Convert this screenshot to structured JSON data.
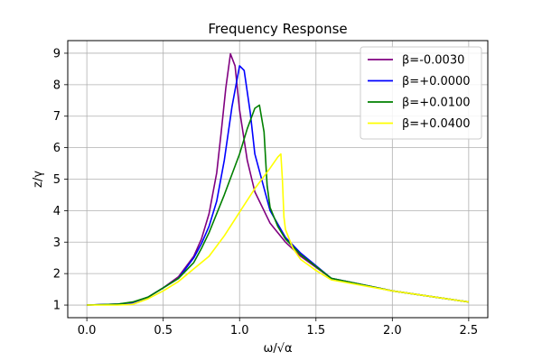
{
  "chart_data": {
    "type": "line",
    "title": "Frequency Response",
    "xlabel": "ω/√α",
    "ylabel": "z/γ",
    "xlim": [
      -0.125,
      2.625
    ],
    "ylim": [
      0.6,
      9.4
    ],
    "xticks": [
      0.0,
      0.5,
      1.0,
      1.5,
      2.0,
      2.5
    ],
    "xtick_labels": [
      "0.0",
      "0.5",
      "1.0",
      "1.5",
      "2.0",
      "2.5"
    ],
    "yticks": [
      1,
      2,
      3,
      4,
      5,
      6,
      7,
      8,
      9
    ],
    "ytick_labels": [
      "1",
      "2",
      "3",
      "4",
      "5",
      "6",
      "7",
      "8",
      "9"
    ],
    "grid": true,
    "legend_position": "top-right",
    "series": [
      {
        "name": "β=-0.0030",
        "color": "#800080",
        "x": [
          0.0,
          0.2,
          0.3,
          0.4,
          0.5,
          0.6,
          0.7,
          0.75,
          0.8,
          0.85,
          0.88,
          0.91,
          0.94,
          0.97,
          1.0,
          1.05,
          1.1,
          1.2,
          1.3,
          1.4,
          1.6,
          2.0,
          2.5
        ],
        "y": [
          1.0,
          1.03,
          1.08,
          1.25,
          1.55,
          1.9,
          2.55,
          3.1,
          3.9,
          5.2,
          6.5,
          7.9,
          8.98,
          8.6,
          7.2,
          5.6,
          4.6,
          3.6,
          3.0,
          2.55,
          1.85,
          1.45,
          1.1
        ]
      },
      {
        "name": "β=+0.0000",
        "color": "#0000ff",
        "x": [
          0.0,
          0.2,
          0.3,
          0.4,
          0.5,
          0.6,
          0.7,
          0.75,
          0.8,
          0.85,
          0.9,
          0.95,
          1.0,
          1.03,
          1.07,
          1.1,
          1.2,
          1.3,
          1.4,
          1.6,
          2.0,
          2.5
        ],
        "y": [
          1.0,
          1.03,
          1.08,
          1.25,
          1.55,
          1.85,
          2.5,
          2.95,
          3.5,
          4.3,
          5.6,
          7.3,
          8.6,
          8.45,
          7.1,
          5.8,
          4.0,
          3.15,
          2.65,
          1.85,
          1.45,
          1.1
        ]
      },
      {
        "name": "β=+0.0100",
        "color": "#008000",
        "x": [
          0.0,
          0.2,
          0.3,
          0.4,
          0.5,
          0.6,
          0.7,
          0.75,
          0.8,
          0.9,
          1.0,
          1.05,
          1.1,
          1.13,
          1.16,
          1.18,
          1.2,
          1.25,
          1.3,
          1.4,
          1.6,
          2.0,
          2.5
        ],
        "y": [
          1.0,
          1.03,
          1.1,
          1.25,
          1.55,
          1.85,
          2.35,
          2.8,
          3.3,
          4.5,
          5.8,
          6.6,
          7.25,
          7.35,
          6.5,
          4.8,
          4.1,
          3.5,
          3.1,
          2.6,
          1.85,
          1.45,
          1.1
        ]
      },
      {
        "name": "β=+0.0400",
        "color": "#ffff00",
        "x": [
          0.0,
          0.2,
          0.3,
          0.4,
          0.5,
          0.6,
          0.7,
          0.8,
          0.9,
          1.0,
          1.1,
          1.2,
          1.25,
          1.27,
          1.28,
          1.29,
          1.3,
          1.35,
          1.4,
          1.5,
          1.6,
          2.0,
          2.5
        ],
        "y": [
          1.0,
          1.0,
          1.02,
          1.2,
          1.45,
          1.75,
          2.15,
          2.55,
          3.2,
          3.95,
          4.7,
          5.35,
          5.7,
          5.8,
          5.0,
          3.8,
          3.4,
          2.8,
          2.45,
          2.1,
          1.8,
          1.45,
          1.1
        ]
      }
    ]
  }
}
